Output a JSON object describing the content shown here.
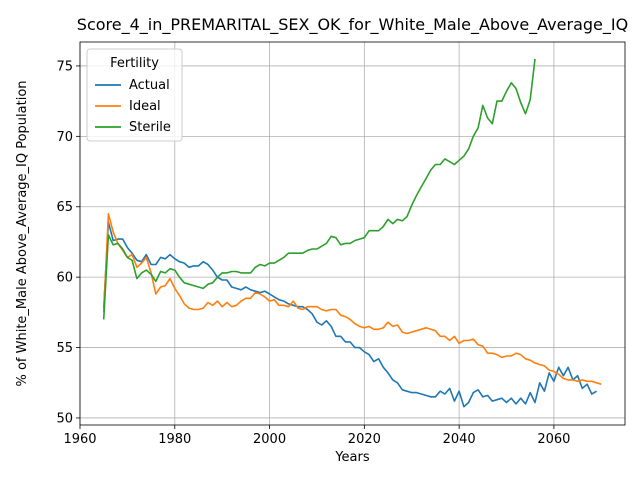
{
  "chart_data": {
    "type": "line",
    "title": "Score_4_in_PREMARITAL_SEX_OK_for_White_Male_Above_Average_IQ",
    "xlabel": "Years",
    "ylabel": "% of White_Male Above_Average_IQ Population",
    "xlim": [
      1960,
      2075
    ],
    "ylim": [
      49.5,
      76.7
    ],
    "xticks": [
      1960,
      1980,
      2000,
      2020,
      2040,
      2060
    ],
    "yticks": [
      50,
      55,
      60,
      65,
      70,
      75
    ],
    "grid": true,
    "legend": {
      "title": "Fertility",
      "placement": "top-left"
    },
    "series": [
      {
        "name": "Actual",
        "color": "#1f77b4",
        "x": [
          1965,
          1966,
          1967,
          1968,
          1969,
          1970,
          1971,
          1972,
          1973,
          1974,
          1975,
          1976,
          1977,
          1978,
          1979,
          1980,
          1981,
          1982,
          1983,
          1984,
          1985,
          1986,
          1987,
          1988,
          1989,
          1990,
          1991,
          1992,
          1993,
          1994,
          1995,
          1996,
          1997,
          1998,
          1999,
          2000,
          2001,
          2002,
          2003,
          2004,
          2005,
          2006,
          2007,
          2008,
          2009,
          2010,
          2011,
          2012,
          2013,
          2014,
          2015,
          2016,
          2017,
          2018,
          2019,
          2020,
          2021,
          2022,
          2023,
          2024,
          2025,
          2026,
          2027,
          2028,
          2029,
          2030,
          2031,
          2032,
          2033,
          2034,
          2035,
          2036,
          2037,
          2038,
          2039,
          2040,
          2041,
          2042,
          2043,
          2044,
          2045,
          2046,
          2047,
          2048,
          2049,
          2050,
          2051,
          2052,
          2053,
          2054,
          2055,
          2056,
          2057,
          2058,
          2059,
          2060,
          2061,
          2062,
          2063,
          2064,
          2065,
          2066,
          2067,
          2068,
          2069,
          2070
        ],
        "y": [
          57.8,
          63.9,
          62.6,
          62.7,
          62.7,
          62.1,
          61.7,
          61.2,
          61.1,
          61.6,
          60.9,
          60.9,
          61.4,
          61.3,
          61.6,
          61.3,
          61.1,
          61.0,
          60.7,
          60.8,
          60.8,
          61.1,
          60.9,
          60.5,
          60.0,
          59.8,
          59.8,
          59.3,
          59.2,
          59.1,
          59.3,
          59.1,
          59.0,
          58.9,
          59.0,
          58.8,
          58.6,
          58.4,
          58.3,
          58.1,
          58.0,
          57.9,
          57.9,
          57.7,
          57.4,
          56.8,
          56.6,
          56.9,
          56.5,
          55.8,
          55.8,
          55.4,
          55.4,
          55.0,
          55.0,
          54.7,
          54.5,
          54.0,
          54.2,
          53.6,
          53.2,
          52.7,
          52.5,
          52.0,
          51.9,
          51.8,
          51.8,
          51.7,
          51.6,
          51.5,
          51.5,
          51.9,
          51.7,
          52.1,
          51.2,
          51.9,
          50.8,
          51.1,
          51.8,
          52.0,
          51.5,
          51.6,
          51.2,
          51.3,
          51.4,
          51.1,
          51.4,
          51.0,
          51.4,
          51.0,
          51.8,
          51.1,
          52.5,
          51.9,
          53.2,
          52.6,
          53.6,
          53.0,
          53.6,
          52.7,
          53.0,
          52.1,
          52.4,
          51.7,
          51.9,
          null
        ]
      },
      {
        "name": "Ideal",
        "color": "#ff7f0e",
        "x": [
          1965,
          1966,
          1967,
          1968,
          1969,
          1970,
          1971,
          1972,
          1973,
          1974,
          1975,
          1976,
          1977,
          1978,
          1979,
          1980,
          1981,
          1982,
          1983,
          1984,
          1985,
          1986,
          1987,
          1988,
          1989,
          1990,
          1991,
          1992,
          1993,
          1994,
          1995,
          1996,
          1997,
          1998,
          1999,
          2000,
          2001,
          2002,
          2003,
          2004,
          2005,
          2006,
          2007,
          2008,
          2009,
          2010,
          2011,
          2012,
          2013,
          2014,
          2015,
          2016,
          2017,
          2018,
          2019,
          2020,
          2021,
          2022,
          2023,
          2024,
          2025,
          2026,
          2027,
          2028,
          2029,
          2030,
          2031,
          2032,
          2033,
          2034,
          2035,
          2036,
          2037,
          2038,
          2039,
          2040,
          2041,
          2042,
          2043,
          2044,
          2045,
          2046,
          2047,
          2048,
          2049,
          2050,
          2051,
          2052,
          2053,
          2054,
          2055,
          2056,
          2057,
          2058,
          2059,
          2060,
          2061,
          2062,
          2063,
          2064,
          2065,
          2066,
          2067,
          2068,
          2069,
          2070
        ],
        "y": [
          57.5,
          64.5,
          63.2,
          62.4,
          61.9,
          61.4,
          61.6,
          60.7,
          61.0,
          61.4,
          60.3,
          58.8,
          59.3,
          59.4,
          59.9,
          59.2,
          58.7,
          58.1,
          57.8,
          57.7,
          57.7,
          57.8,
          58.2,
          58.0,
          58.3,
          57.9,
          58.2,
          57.9,
          58.0,
          58.3,
          58.5,
          58.5,
          58.9,
          58.8,
          58.6,
          58.3,
          58.4,
          58.0,
          58.0,
          57.9,
          58.3,
          57.8,
          57.7,
          57.9,
          57.9,
          57.9,
          57.7,
          57.6,
          57.7,
          57.7,
          57.3,
          57.2,
          57.0,
          56.7,
          56.5,
          56.4,
          56.5,
          56.3,
          56.3,
          56.4,
          56.8,
          56.5,
          56.6,
          56.1,
          56.0,
          56.1,
          56.2,
          56.3,
          56.4,
          56.3,
          56.2,
          55.8,
          55.8,
          55.5,
          55.8,
          55.3,
          55.5,
          55.5,
          55.6,
          55.2,
          55.1,
          54.6,
          54.6,
          54.5,
          54.3,
          54.4,
          54.4,
          54.6,
          54.5,
          54.2,
          54.1,
          53.9,
          53.8,
          53.7,
          53.4,
          53.3,
          53.1,
          52.8,
          52.7,
          52.7,
          52.6,
          52.7,
          52.6,
          52.6,
          52.5,
          52.4
        ]
      },
      {
        "name": "Sterile",
        "color": "#2ca02c",
        "x": [
          1965,
          1966,
          1967,
          1968,
          1969,
          1970,
          1971,
          1972,
          1973,
          1974,
          1975,
          1976,
          1977,
          1978,
          1979,
          1980,
          1981,
          1982,
          1983,
          1984,
          1985,
          1986,
          1987,
          1988,
          1989,
          1990,
          1991,
          1992,
          1993,
          1994,
          1995,
          1996,
          1997,
          1998,
          1999,
          2000,
          2001,
          2002,
          2003,
          2004,
          2005,
          2006,
          2007,
          2008,
          2009,
          2010,
          2011,
          2012,
          2013,
          2014,
          2015,
          2016,
          2017,
          2018,
          2019,
          2020,
          2021,
          2022,
          2023,
          2024,
          2025,
          2026,
          2027,
          2028,
          2029,
          2030,
          2031,
          2032,
          2033,
          2034,
          2035,
          2036,
          2037,
          2038,
          2039,
          2040,
          2041,
          2042,
          2043,
          2044,
          2045,
          2046,
          2047,
          2048,
          2049,
          2050,
          2051,
          2052,
          2053,
          2054,
          2055,
          2056
        ],
        "y": [
          57.0,
          63.0,
          62.3,
          62.4,
          62.0,
          61.4,
          61.2,
          59.9,
          60.3,
          60.5,
          60.2,
          59.7,
          60.4,
          60.3,
          60.6,
          60.5,
          60.0,
          59.6,
          59.5,
          59.4,
          59.3,
          59.2,
          59.5,
          59.6,
          60.0,
          60.3,
          60.3,
          60.4,
          60.4,
          60.3,
          60.3,
          60.3,
          60.7,
          60.9,
          60.8,
          61.0,
          61.0,
          61.2,
          61.4,
          61.7,
          61.7,
          61.7,
          61.7,
          61.9,
          62.0,
          62.0,
          62.2,
          62.4,
          62.9,
          62.8,
          62.3,
          62.4,
          62.4,
          62.6,
          62.7,
          62.8,
          63.3,
          63.3,
          63.3,
          63.6,
          64.1,
          63.8,
          64.1,
          64.0,
          64.3,
          65.1,
          65.8,
          66.4,
          67.0,
          67.6,
          68.0,
          68.0,
          68.4,
          68.2,
          68.0,
          68.3,
          68.6,
          69.1,
          70.0,
          70.6,
          72.2,
          71.3,
          70.9,
          72.5,
          72.5,
          73.2,
          73.8,
          73.4,
          72.4,
          71.6,
          72.6,
          75.5
        ]
      }
    ]
  }
}
